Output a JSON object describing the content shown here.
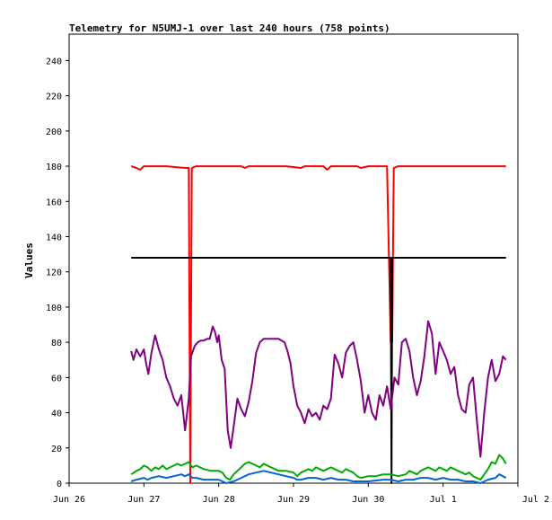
{
  "chart_data": {
    "type": "line",
    "title": "Telemetry for N5UMJ-1 over last 240 hours (758 points)",
    "xlabel": "",
    "ylabel": "Values",
    "xlim": [
      "Jun 26",
      "Jul 2"
    ],
    "ylim": [
      0,
      255
    ],
    "x_ticks": [
      "Jun 26",
      "Jun 27",
      "Jun 28",
      "Jun 29",
      "Jun 30",
      "Jul 1",
      "Jul 2"
    ],
    "y_ticks": [
      0,
      20,
      40,
      60,
      80,
      100,
      120,
      140,
      160,
      180,
      200,
      220,
      240
    ],
    "grid": false,
    "legend": "none",
    "x_unit": "days since Jun 26 00:00",
    "series": [
      {
        "color": "#ff0000",
        "points": [
          [
            0.83,
            180
          ],
          [
            0.9,
            179
          ],
          [
            0.95,
            178
          ],
          [
            1.0,
            180
          ],
          [
            1.3,
            180
          ],
          [
            1.55,
            179
          ],
          [
            1.6,
            179
          ],
          [
            1.62,
            0
          ],
          [
            1.63,
            91
          ],
          [
            1.64,
            179
          ],
          [
            1.7,
            180
          ],
          [
            2.3,
            180
          ],
          [
            2.35,
            179
          ],
          [
            2.4,
            180
          ],
          [
            2.9,
            180
          ],
          [
            3.1,
            179
          ],
          [
            3.15,
            180
          ],
          [
            3.4,
            180
          ],
          [
            3.45,
            178
          ],
          [
            3.5,
            180
          ],
          [
            3.85,
            180
          ],
          [
            3.9,
            179
          ],
          [
            4.0,
            180
          ],
          [
            4.25,
            180
          ],
          [
            4.3,
            80
          ],
          [
            4.32,
            80
          ],
          [
            4.34,
            179
          ],
          [
            4.4,
            180
          ],
          [
            4.6,
            180
          ],
          [
            4.8,
            180
          ],
          [
            5.0,
            180
          ],
          [
            5.2,
            180
          ],
          [
            5.5,
            180
          ],
          [
            5.8,
            180
          ],
          [
            5.84,
            180
          ]
        ]
      },
      {
        "color": "#000000",
        "points": [
          [
            0.83,
            128
          ],
          [
            4.3,
            128
          ],
          [
            4.31,
            0
          ],
          [
            4.32,
            128
          ],
          [
            5.84,
            128
          ]
        ]
      },
      {
        "color": "#800080",
        "points": [
          [
            0.83,
            75
          ],
          [
            0.86,
            70
          ],
          [
            0.9,
            76
          ],
          [
            0.95,
            72
          ],
          [
            1.0,
            76
          ],
          [
            1.03,
            68
          ],
          [
            1.06,
            62
          ],
          [
            1.1,
            74
          ],
          [
            1.15,
            84
          ],
          [
            1.2,
            76
          ],
          [
            1.25,
            70
          ],
          [
            1.3,
            60
          ],
          [
            1.35,
            55
          ],
          [
            1.4,
            48
          ],
          [
            1.45,
            44
          ],
          [
            1.5,
            50
          ],
          [
            1.55,
            30
          ],
          [
            1.6,
            48
          ],
          [
            1.63,
            72
          ],
          [
            1.68,
            78
          ],
          [
            1.72,
            80
          ],
          [
            1.76,
            81
          ],
          [
            1.8,
            81
          ],
          [
            1.85,
            82
          ],
          [
            1.88,
            82
          ],
          [
            1.92,
            89
          ],
          [
            1.95,
            86
          ],
          [
            1.98,
            80
          ],
          [
            2.0,
            84
          ],
          [
            2.04,
            70
          ],
          [
            2.08,
            65
          ],
          [
            2.12,
            30
          ],
          [
            2.16,
            20
          ],
          [
            2.2,
            32
          ],
          [
            2.25,
            48
          ],
          [
            2.3,
            42
          ],
          [
            2.35,
            38
          ],
          [
            2.4,
            46
          ],
          [
            2.45,
            58
          ],
          [
            2.5,
            74
          ],
          [
            2.55,
            80
          ],
          [
            2.6,
            82
          ],
          [
            2.7,
            82
          ],
          [
            2.8,
            82
          ],
          [
            2.88,
            80
          ],
          [
            2.92,
            75
          ],
          [
            2.96,
            68
          ],
          [
            3.0,
            55
          ],
          [
            3.05,
            44
          ],
          [
            3.1,
            40
          ],
          [
            3.15,
            34
          ],
          [
            3.2,
            42
          ],
          [
            3.25,
            38
          ],
          [
            3.3,
            40
          ],
          [
            3.35,
            36
          ],
          [
            3.4,
            44
          ],
          [
            3.45,
            42
          ],
          [
            3.5,
            48
          ],
          [
            3.55,
            73
          ],
          [
            3.6,
            68
          ],
          [
            3.65,
            60
          ],
          [
            3.7,
            74
          ],
          [
            3.75,
            78
          ],
          [
            3.8,
            80
          ],
          [
            3.85,
            70
          ],
          [
            3.9,
            58
          ],
          [
            3.95,
            40
          ],
          [
            4.0,
            50
          ],
          [
            4.05,
            40
          ],
          [
            4.1,
            36
          ],
          [
            4.15,
            50
          ],
          [
            4.2,
            44
          ],
          [
            4.25,
            55
          ],
          [
            4.3,
            42
          ],
          [
            4.35,
            60
          ],
          [
            4.4,
            56
          ],
          [
            4.45,
            80
          ],
          [
            4.5,
            82
          ],
          [
            4.55,
            75
          ],
          [
            4.6,
            60
          ],
          [
            4.65,
            50
          ],
          [
            4.7,
            58
          ],
          [
            4.75,
            72
          ],
          [
            4.8,
            92
          ],
          [
            4.85,
            85
          ],
          [
            4.9,
            62
          ],
          [
            4.95,
            80
          ],
          [
            5.0,
            75
          ],
          [
            5.05,
            70
          ],
          [
            5.1,
            62
          ],
          [
            5.15,
            66
          ],
          [
            5.2,
            50
          ],
          [
            5.25,
            42
          ],
          [
            5.3,
            40
          ],
          [
            5.35,
            56
          ],
          [
            5.4,
            60
          ],
          [
            5.45,
            36
          ],
          [
            5.5,
            15
          ],
          [
            5.55,
            40
          ],
          [
            5.6,
            60
          ],
          [
            5.65,
            70
          ],
          [
            5.7,
            58
          ],
          [
            5.75,
            62
          ],
          [
            5.8,
            72
          ],
          [
            5.84,
            70
          ]
        ]
      },
      {
        "color": "#00aa00",
        "points": [
          [
            0.83,
            5
          ],
          [
            0.9,
            7
          ],
          [
            0.95,
            8
          ],
          [
            1.0,
            10
          ],
          [
            1.05,
            9
          ],
          [
            1.1,
            7
          ],
          [
            1.15,
            9
          ],
          [
            1.2,
            8
          ],
          [
            1.25,
            10
          ],
          [
            1.3,
            8
          ],
          [
            1.35,
            9
          ],
          [
            1.4,
            10
          ],
          [
            1.45,
            11
          ],
          [
            1.5,
            10
          ],
          [
            1.55,
            11
          ],
          [
            1.6,
            12
          ],
          [
            1.65,
            9
          ],
          [
            1.7,
            10
          ],
          [
            1.75,
            9
          ],
          [
            1.8,
            8
          ],
          [
            1.9,
            7
          ],
          [
            2.0,
            7
          ],
          [
            2.05,
            6
          ],
          [
            2.1,
            3
          ],
          [
            2.15,
            2
          ],
          [
            2.2,
            5
          ],
          [
            2.25,
            7
          ],
          [
            2.3,
            9
          ],
          [
            2.35,
            11
          ],
          [
            2.4,
            12
          ],
          [
            2.45,
            11
          ],
          [
            2.5,
            10
          ],
          [
            2.55,
            9
          ],
          [
            2.6,
            11
          ],
          [
            2.65,
            10
          ],
          [
            2.7,
            9
          ],
          [
            2.75,
            8
          ],
          [
            2.8,
            7
          ],
          [
            2.9,
            7
          ],
          [
            3.0,
            6
          ],
          [
            3.05,
            4
          ],
          [
            3.1,
            6
          ],
          [
            3.15,
            7
          ],
          [
            3.2,
            8
          ],
          [
            3.25,
            7
          ],
          [
            3.3,
            9
          ],
          [
            3.35,
            8
          ],
          [
            3.4,
            7
          ],
          [
            3.45,
            8
          ],
          [
            3.5,
            9
          ],
          [
            3.55,
            8
          ],
          [
            3.6,
            7
          ],
          [
            3.65,
            6
          ],
          [
            3.7,
            8
          ],
          [
            3.75,
            7
          ],
          [
            3.8,
            6
          ],
          [
            3.85,
            4
          ],
          [
            3.9,
            3
          ],
          [
            4.0,
            4
          ],
          [
            4.1,
            4
          ],
          [
            4.2,
            5
          ],
          [
            4.3,
            5
          ],
          [
            4.4,
            4
          ],
          [
            4.5,
            5
          ],
          [
            4.55,
            7
          ],
          [
            4.6,
            6
          ],
          [
            4.65,
            5
          ],
          [
            4.7,
            7
          ],
          [
            4.75,
            8
          ],
          [
            4.8,
            9
          ],
          [
            4.85,
            8
          ],
          [
            4.9,
            7
          ],
          [
            4.95,
            9
          ],
          [
            5.0,
            8
          ],
          [
            5.05,
            7
          ],
          [
            5.1,
            9
          ],
          [
            5.15,
            8
          ],
          [
            5.2,
            7
          ],
          [
            5.25,
            6
          ],
          [
            5.3,
            5
          ],
          [
            5.35,
            6
          ],
          [
            5.4,
            4
          ],
          [
            5.45,
            3
          ],
          [
            5.5,
            2
          ],
          [
            5.55,
            5
          ],
          [
            5.6,
            8
          ],
          [
            5.65,
            12
          ],
          [
            5.7,
            11
          ],
          [
            5.75,
            16
          ],
          [
            5.8,
            14
          ],
          [
            5.84,
            11
          ]
        ]
      },
      {
        "color": "#0066cc",
        "points": [
          [
            0.83,
            1
          ],
          [
            0.9,
            2
          ],
          [
            1.0,
            3
          ],
          [
            1.05,
            2
          ],
          [
            1.1,
            3
          ],
          [
            1.2,
            4
          ],
          [
            1.3,
            3
          ],
          [
            1.4,
            4
          ],
          [
            1.5,
            5
          ],
          [
            1.55,
            4
          ],
          [
            1.6,
            5
          ],
          [
            1.65,
            3
          ],
          [
            1.7,
            3
          ],
          [
            1.8,
            2
          ],
          [
            1.9,
            2
          ],
          [
            2.0,
            2
          ],
          [
            2.05,
            1
          ],
          [
            2.1,
            0
          ],
          [
            2.2,
            1
          ],
          [
            2.3,
            3
          ],
          [
            2.4,
            5
          ],
          [
            2.5,
            6
          ],
          [
            2.6,
            7
          ],
          [
            2.7,
            6
          ],
          [
            2.8,
            5
          ],
          [
            2.9,
            4
          ],
          [
            3.0,
            3
          ],
          [
            3.05,
            2
          ],
          [
            3.1,
            2
          ],
          [
            3.2,
            3
          ],
          [
            3.3,
            3
          ],
          [
            3.4,
            2
          ],
          [
            3.5,
            3
          ],
          [
            3.6,
            2
          ],
          [
            3.7,
            2
          ],
          [
            3.8,
            1
          ],
          [
            3.9,
            1
          ],
          [
            4.0,
            1
          ],
          [
            4.2,
            2
          ],
          [
            4.3,
            2
          ],
          [
            4.4,
            1
          ],
          [
            4.5,
            2
          ],
          [
            4.6,
            2
          ],
          [
            4.7,
            3
          ],
          [
            4.8,
            3
          ],
          [
            4.9,
            2
          ],
          [
            5.0,
            3
          ],
          [
            5.1,
            2
          ],
          [
            5.2,
            2
          ],
          [
            5.3,
            1
          ],
          [
            5.4,
            1
          ],
          [
            5.5,
            0
          ],
          [
            5.6,
            2
          ],
          [
            5.7,
            3
          ],
          [
            5.75,
            5
          ],
          [
            5.8,
            4
          ],
          [
            5.84,
            3
          ]
        ]
      }
    ]
  }
}
